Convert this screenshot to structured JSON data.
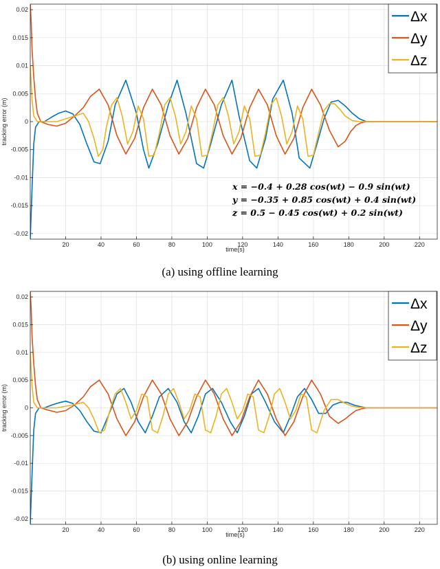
{
  "chart_data": [
    {
      "type": "line",
      "xlabel": "time(s)",
      "ylabel": "tracking error (m)",
      "xlim": [
        0,
        230
      ],
      "ylim": [
        -0.021,
        0.021
      ],
      "xticks": [
        20,
        40,
        60,
        80,
        100,
        120,
        140,
        160,
        180,
        200,
        220
      ],
      "yticks": [
        -0.02,
        -0.015,
        -0.01,
        -0.005,
        0,
        0.005,
        0.01,
        0.015,
        0.02
      ],
      "ytick_labels": [
        "-0.02",
        "-0.015",
        "-0.01",
        "-0.005",
        "0",
        "0.005",
        "0.01",
        "0.015",
        "0.02"
      ],
      "grid": true,
      "legend_position": "top-right",
      "annotation_lines": [
        "x = −0.4 + 0.28 cos(wt) − 0.9 sin(wt)",
        "y = −0.35 + 0.85 cos(wt) + 0.4 sin(wt)",
        "z = 0.5 − 0.45 cos(wt) + 0.2 sin(wt)"
      ],
      "caption": "(a)  using  offline  learning",
      "series": [
        {
          "name": "Δx",
          "color": "#0072BD",
          "x": [
            0,
            1,
            2,
            3,
            5,
            8,
            12,
            16,
            20,
            24,
            28,
            32,
            36,
            39.5,
            44,
            48,
            54,
            60,
            64,
            67,
            72,
            78,
            83,
            88,
            94,
            98,
            102,
            108,
            114,
            118,
            124,
            128,
            133,
            137,
            143,
            148,
            152,
            158,
            162,
            166,
            170,
            174,
            178,
            182,
            186,
            190,
            200,
            230
          ],
          "y": [
            -0.021,
            -0.012,
            -0.004,
            -0.001,
            0,
            0,
            0.0008,
            0.0015,
            0.0019,
            0.0014,
            -0.0005,
            -0.004,
            -0.0072,
            -0.0075,
            -0.0035,
            0.003,
            0.0074,
            0.0015,
            -0.005,
            -0.0083,
            -0.004,
            0.003,
            0.0074,
            0.0015,
            -0.0075,
            -0.0083,
            -0.004,
            0.003,
            0.0074,
            0.001,
            -0.007,
            -0.0083,
            -0.003,
            0.004,
            0.0074,
            0.0015,
            -0.0065,
            -0.0083,
            -0.004,
            0.0005,
            0.0035,
            0.0038,
            0.0028,
            0.0015,
            0.0005,
            0,
            0,
            0
          ]
        },
        {
          "name": "Δy",
          "color": "#D95319",
          "x": [
            0,
            0.5,
            1,
            2,
            3,
            4,
            6,
            10,
            15,
            20,
            25,
            30,
            34,
            39,
            44,
            49,
            54,
            59,
            64,
            69,
            74,
            79,
            84,
            89,
            94,
            99,
            104,
            109,
            114,
            119,
            124,
            129,
            134,
            139,
            144,
            149,
            154,
            159,
            164,
            169,
            174,
            178,
            181,
            184,
            187,
            190,
            200,
            230
          ],
          "y": [
            0.021,
            0.018,
            0.013,
            0.008,
            0.004,
            0.0015,
            0,
            -0.0005,
            -0.0008,
            -0.0003,
            0.001,
            0.0025,
            0.0045,
            0.0058,
            0.003,
            -0.0025,
            -0.0058,
            -0.003,
            0.0025,
            0.0058,
            0.003,
            -0.0025,
            -0.0058,
            -0.003,
            0.0025,
            0.0058,
            0.003,
            -0.0025,
            -0.0058,
            -0.003,
            0.0025,
            0.0058,
            0.003,
            -0.0025,
            -0.0058,
            -0.003,
            0.0025,
            0.0058,
            0.003,
            -0.0015,
            -0.0045,
            -0.0035,
            -0.0018,
            -0.0007,
            -0.0002,
            0,
            0,
            0
          ]
        },
        {
          "name": "Δz",
          "color": "#EDB120",
          "x": [
            0,
            1,
            2,
            4,
            7,
            10,
            15,
            20,
            25,
            30,
            33,
            36,
            38.5,
            41,
            43,
            46,
            49,
            52,
            55,
            58,
            61,
            64,
            67,
            70,
            73,
            76,
            79,
            82,
            85,
            88,
            91,
            94,
            97,
            100,
            103,
            106,
            109,
            112,
            115,
            118,
            121,
            124,
            127,
            130,
            133,
            136,
            139,
            142,
            145,
            148,
            151,
            154,
            157,
            160,
            163,
            166,
            169,
            172,
            175,
            178,
            182,
            186,
            190,
            200,
            230
          ],
          "y": [
            0.01,
            0.004,
            0.001,
            0,
            0,
            0,
            0,
            0.0005,
            0.001,
            0.0015,
            0,
            -0.003,
            -0.0062,
            -0.005,
            -0.001,
            0.003,
            0.0043,
            0.001,
            -0.004,
            -0.0018,
            0.0028,
            0.0005,
            -0.0062,
            -0.006,
            -0.002,
            0.003,
            0.0043,
            0.001,
            -0.004,
            -0.0018,
            0.0028,
            0.0005,
            -0.0062,
            -0.006,
            -0.002,
            0.003,
            0.0043,
            0.001,
            -0.004,
            -0.0018,
            0.0028,
            0.0005,
            -0.0062,
            -0.006,
            -0.002,
            0.003,
            0.0043,
            0.001,
            -0.004,
            -0.0018,
            0.0028,
            0.0005,
            -0.0062,
            -0.006,
            -0.002,
            0.002,
            0.0032,
            0.0032,
            0.0022,
            0.001,
            0.0002,
            0,
            0,
            0,
            0
          ]
        }
      ]
    },
    {
      "type": "line",
      "xlabel": "time(s)",
      "ylabel": "tracking error (m)",
      "xlim": [
        0,
        230
      ],
      "ylim": [
        -0.021,
        0.021
      ],
      "xticks": [
        20,
        40,
        60,
        80,
        100,
        120,
        140,
        160,
        180,
        200,
        220
      ],
      "yticks": [
        -0.02,
        -0.015,
        -0.01,
        -0.005,
        0,
        0.005,
        0.01,
        0.015,
        0.02
      ],
      "ytick_labels": [
        "-0.02",
        "-0.015",
        "-0.01",
        "-0.005",
        "0",
        "0.005",
        "0.01",
        "0.015",
        "0.02"
      ],
      "grid": true,
      "legend_position": "top-right",
      "caption": "(b)  using  online  learning",
      "series": [
        {
          "name": "Δx",
          "color": "#0072BD",
          "x": [
            0,
            1,
            2,
            3,
            5,
            8,
            12,
            16,
            20,
            24,
            28,
            32,
            36,
            40,
            44,
            49,
            53,
            57,
            61,
            65,
            69,
            73,
            78,
            83,
            87,
            91,
            95,
            99,
            103,
            108,
            113,
            117,
            121,
            125,
            129,
            133,
            138,
            143,
            147,
            151,
            155,
            159,
            163,
            167,
            171,
            175,
            179,
            183,
            187,
            190,
            200,
            230
          ],
          "y": [
            -0.021,
            -0.012,
            -0.004,
            -0.001,
            0,
            0,
            0.0005,
            0.0009,
            0.0012,
            0.0008,
            -0.0005,
            -0.0025,
            -0.0042,
            -0.0045,
            -0.0015,
            0.0025,
            0.0035,
            0.001,
            -0.0025,
            -0.0045,
            -0.0015,
            0.002,
            0.0035,
            0.001,
            -0.0025,
            -0.0045,
            -0.0015,
            0.0025,
            0.0035,
            0.001,
            -0.0025,
            -0.0045,
            -0.0015,
            0.0025,
            0.0035,
            0.001,
            -0.0025,
            -0.0045,
            -0.0015,
            0.002,
            0.0035,
            0.0015,
            -0.001,
            -0.001,
            0.0005,
            0.001,
            0.001,
            0.0005,
            0.0002,
            0,
            0,
            0
          ]
        },
        {
          "name": "Δy",
          "color": "#D95319",
          "x": [
            0,
            0.5,
            1,
            2,
            3,
            4,
            6,
            10,
            15,
            20,
            25,
            30,
            34,
            39,
            44,
            49,
            54,
            59,
            64,
            69,
            74,
            79,
            84,
            89,
            94,
            99,
            104,
            109,
            114,
            119,
            124,
            129,
            134,
            139,
            144,
            149,
            154,
            159,
            164,
            169,
            174,
            178,
            181,
            184,
            187,
            190,
            200,
            230
          ],
          "y": [
            0.021,
            0.018,
            0.013,
            0.008,
            0.004,
            0.0015,
            0,
            -0.0004,
            -0.0008,
            -0.0005,
            0.0005,
            0.002,
            0.0038,
            0.005,
            0.0025,
            -0.002,
            -0.005,
            -0.0025,
            0.002,
            0.005,
            0.0025,
            -0.002,
            -0.005,
            -0.0025,
            0.002,
            0.005,
            0.0025,
            -0.002,
            -0.005,
            -0.0025,
            0.002,
            0.005,
            0.0025,
            -0.002,
            -0.005,
            -0.0025,
            0.002,
            0.005,
            0.0025,
            -0.0015,
            -0.0028,
            -0.002,
            -0.0012,
            -0.0005,
            -0.0002,
            0,
            0,
            0
          ]
        },
        {
          "name": "Δz",
          "color": "#EDB120",
          "x": [
            0,
            1,
            2,
            4,
            7,
            10,
            15,
            20,
            25,
            30,
            33,
            36,
            39,
            42,
            45,
            48,
            51,
            54,
            57,
            60,
            63,
            66,
            69,
            72,
            75,
            78,
            81,
            84,
            87,
            90,
            93,
            96,
            99,
            102,
            105,
            108,
            111,
            114,
            117,
            120,
            123,
            126,
            129,
            132,
            135,
            138,
            141,
            144,
            147,
            150,
            153,
            156,
            159,
            162,
            166,
            170,
            174,
            178,
            182,
            186,
            190,
            200,
            230
          ],
          "y": [
            0.01,
            0.004,
            0.001,
            0,
            0,
            0,
            0,
            0.0003,
            0.0006,
            0.001,
            0,
            -0.002,
            -0.0045,
            -0.004,
            -0.0005,
            0.0025,
            0.0035,
            0.001,
            -0.002,
            -0.0005,
            0.0025,
            0.002,
            -0.004,
            -0.0045,
            -0.0015,
            0.0025,
            0.0035,
            0.001,
            -0.002,
            -0.0005,
            0.0025,
            0.002,
            -0.004,
            -0.0045,
            -0.0015,
            0.0025,
            0.0035,
            0.001,
            -0.002,
            -0.0005,
            0.0025,
            0.002,
            -0.004,
            -0.0045,
            -0.0015,
            0.0025,
            0.0035,
            0.001,
            -0.002,
            -0.0005,
            0.0025,
            0.002,
            -0.004,
            -0.0045,
            -0.0005,
            0.0015,
            0.0015,
            0.0008,
            0.0003,
            0.0001,
            0,
            0,
            0
          ]
        }
      ]
    }
  ]
}
